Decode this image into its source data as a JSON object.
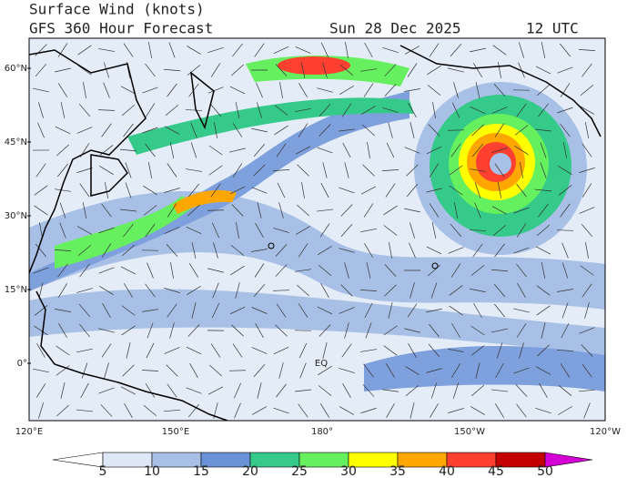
{
  "header": {
    "title": "Surface Wind (knots)",
    "subtitle": "GFS 360 Hour Forecast",
    "date": "Sun 28 Dec 2025",
    "time": "12 UTC"
  },
  "map": {
    "lat_labels": [
      "60°N",
      "45°N",
      "30°N",
      "15°N",
      "0°"
    ],
    "lon_labels": [
      "120°E",
      "150°E",
      "180°",
      "150°W",
      "120°W"
    ],
    "annotations": [
      "EQ"
    ]
  },
  "colorbar": {
    "labels": [
      5,
      10,
      15,
      20,
      25,
      30,
      35,
      40,
      45,
      50
    ],
    "colors": [
      "#ffffff",
      "#dfe8f7",
      "#a9c0e6",
      "#6a92d6",
      "#35c98a",
      "#66ef5e",
      "#ffff00",
      "#ffa600",
      "#ff4030",
      "#c40000",
      "#d400d4"
    ]
  }
}
